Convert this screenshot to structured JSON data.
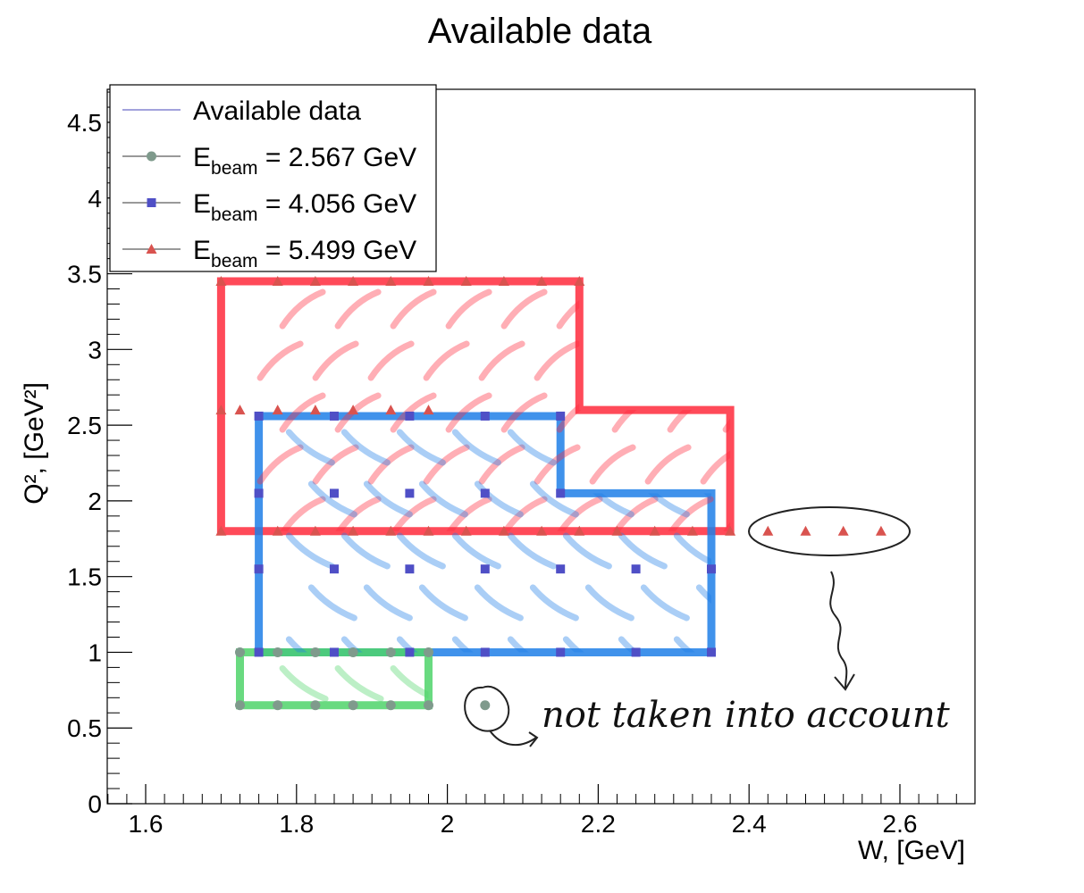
{
  "chart_data": {
    "type": "scatter",
    "title": "Available data",
    "xlabel": "W, [GeV]",
    "ylabel": "Q², [GeV²]",
    "xlim": [
      1.55,
      2.7
    ],
    "ylim": [
      0,
      4.7
    ],
    "xticks": [
      1.6,
      1.8,
      2.0,
      2.2,
      2.4,
      2.6
    ],
    "xtick_labels": [
      "1.6",
      "1.8",
      "2",
      "2.2",
      "2.4",
      "2.6"
    ],
    "yticks": [
      0,
      0.5,
      1,
      1.5,
      2,
      2.5,
      3,
      3.5,
      4,
      4.5
    ],
    "ytick_labels": [
      "0",
      "0.5",
      "1",
      "1.5",
      "2",
      "2.5",
      "3",
      "3.5",
      "4",
      "4.5"
    ],
    "legend_position": "top-left",
    "legend": [
      {
        "base": "Available data",
        "sub": "",
        "rest": "",
        "marker": "none",
        "color": "#6a6ac8"
      },
      {
        "base": "E",
        "sub": "beam",
        "rest": " = 2.567 GeV",
        "marker": "circle",
        "color": "#7f9a8c"
      },
      {
        "base": "E",
        "sub": "beam",
        "rest": " = 4.056 GeV",
        "marker": "square",
        "color": "#4f4fc6"
      },
      {
        "base": "E",
        "sub": "beam",
        "rest": " = 5.499 GeV",
        "marker": "triangle",
        "color": "#d9534f"
      }
    ],
    "series": [
      {
        "name": "E_beam = 2.567 GeV",
        "marker": "circle",
        "color": "#7f9a8c",
        "points": [
          [
            1.725,
            0.65
          ],
          [
            1.775,
            0.65
          ],
          [
            1.825,
            0.65
          ],
          [
            1.875,
            0.65
          ],
          [
            1.925,
            0.65
          ],
          [
            1.975,
            0.65
          ],
          [
            2.05,
            0.65
          ],
          [
            1.725,
            1.0
          ],
          [
            1.775,
            1.0
          ],
          [
            1.825,
            1.0
          ],
          [
            1.875,
            1.0
          ],
          [
            1.925,
            1.0
          ],
          [
            1.975,
            1.0
          ]
        ]
      },
      {
        "name": "E_beam = 4.056 GeV",
        "marker": "square",
        "color": "#4f4fc6",
        "points": [
          [
            1.75,
            2.56
          ],
          [
            1.85,
            2.56
          ],
          [
            1.95,
            2.56
          ],
          [
            2.05,
            2.56
          ],
          [
            2.15,
            2.56
          ],
          [
            1.75,
            2.05
          ],
          [
            1.85,
            2.05
          ],
          [
            1.95,
            2.05
          ],
          [
            2.05,
            2.05
          ],
          [
            2.15,
            2.05
          ],
          [
            1.75,
            1.55
          ],
          [
            1.85,
            1.55
          ],
          [
            1.95,
            1.55
          ],
          [
            2.05,
            1.55
          ],
          [
            2.15,
            1.55
          ],
          [
            2.25,
            1.55
          ],
          [
            2.35,
            1.55
          ],
          [
            1.75,
            1.0
          ],
          [
            1.85,
            1.0
          ],
          [
            1.95,
            1.0
          ],
          [
            2.05,
            1.0
          ],
          [
            2.15,
            1.0
          ],
          [
            2.25,
            1.0
          ],
          [
            2.35,
            1.0
          ]
        ]
      },
      {
        "name": "E_beam = 5.499 GeV",
        "marker": "triangle",
        "color": "#d9534f",
        "points": [
          [
            1.7,
            3.45
          ],
          [
            1.775,
            3.45
          ],
          [
            1.825,
            3.45
          ],
          [
            1.875,
            3.45
          ],
          [
            1.925,
            3.45
          ],
          [
            1.975,
            3.45
          ],
          [
            2.025,
            3.45
          ],
          [
            2.075,
            3.45
          ],
          [
            2.125,
            3.45
          ],
          [
            2.175,
            3.45
          ],
          [
            1.7,
            2.6
          ],
          [
            1.725,
            2.6
          ],
          [
            1.775,
            2.6
          ],
          [
            1.825,
            2.6
          ],
          [
            1.875,
            2.6
          ],
          [
            1.925,
            2.6
          ],
          [
            1.975,
            2.6
          ],
          [
            1.7,
            1.8
          ],
          [
            1.775,
            1.8
          ],
          [
            1.825,
            1.8
          ],
          [
            1.875,
            1.8
          ],
          [
            1.925,
            1.8
          ],
          [
            1.975,
            1.8
          ],
          [
            2.025,
            1.8
          ],
          [
            2.075,
            1.8
          ],
          [
            2.125,
            1.8
          ],
          [
            2.175,
            1.8
          ],
          [
            2.225,
            1.8
          ],
          [
            2.275,
            1.8
          ],
          [
            2.325,
            1.8
          ],
          [
            2.375,
            1.8
          ],
          [
            2.425,
            1.8
          ],
          [
            2.475,
            1.8
          ],
          [
            2.525,
            1.8
          ],
          [
            2.575,
            1.8
          ]
        ]
      }
    ],
    "regions": [
      {
        "color": "#ff2a3c",
        "polygon": [
          [
            1.7,
            1.8
          ],
          [
            1.7,
            3.45
          ],
          [
            2.175,
            3.45
          ],
          [
            2.175,
            2.6
          ],
          [
            2.375,
            2.6
          ],
          [
            2.375,
            1.8
          ]
        ]
      },
      {
        "color": "#1f7fe8",
        "polygon": [
          [
            1.75,
            1.0
          ],
          [
            1.75,
            2.56
          ],
          [
            2.15,
            2.56
          ],
          [
            2.15,
            2.05
          ],
          [
            2.35,
            2.05
          ],
          [
            2.35,
            1.0
          ]
        ]
      },
      {
        "color": "#4fd46a",
        "polygon": [
          [
            1.725,
            0.65
          ],
          [
            1.725,
            1.0
          ],
          [
            1.975,
            1.0
          ],
          [
            1.975,
            0.65
          ]
        ]
      }
    ],
    "annotation": {
      "text": "not taken into account",
      "circled_points": "E_beam = 5.499 GeV at Q² = 1.8, W = 2.425–2.575; E_beam = 2.567 GeV at W = 2.05"
    }
  }
}
